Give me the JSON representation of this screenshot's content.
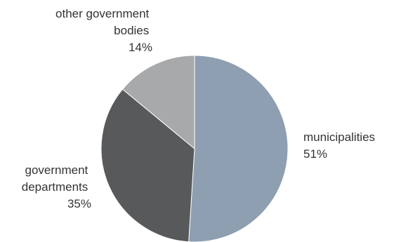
{
  "chart_data": {
    "type": "pie",
    "slices": [
      {
        "label_lines": [
          "municipalities"
        ],
        "value": 51,
        "value_label": "51%",
        "color": "#8d9fb1"
      },
      {
        "label_lines": [
          "government",
          "departments"
        ],
        "value": 35,
        "value_label": "35%",
        "color": "#58595b"
      },
      {
        "label_lines": [
          "other government",
          "bodies"
        ],
        "value": 14,
        "value_label": "14%",
        "color": "#a8a9ab"
      }
    ],
    "start": "12 o'clock",
    "direction": "clockwise",
    "legend": "none"
  }
}
